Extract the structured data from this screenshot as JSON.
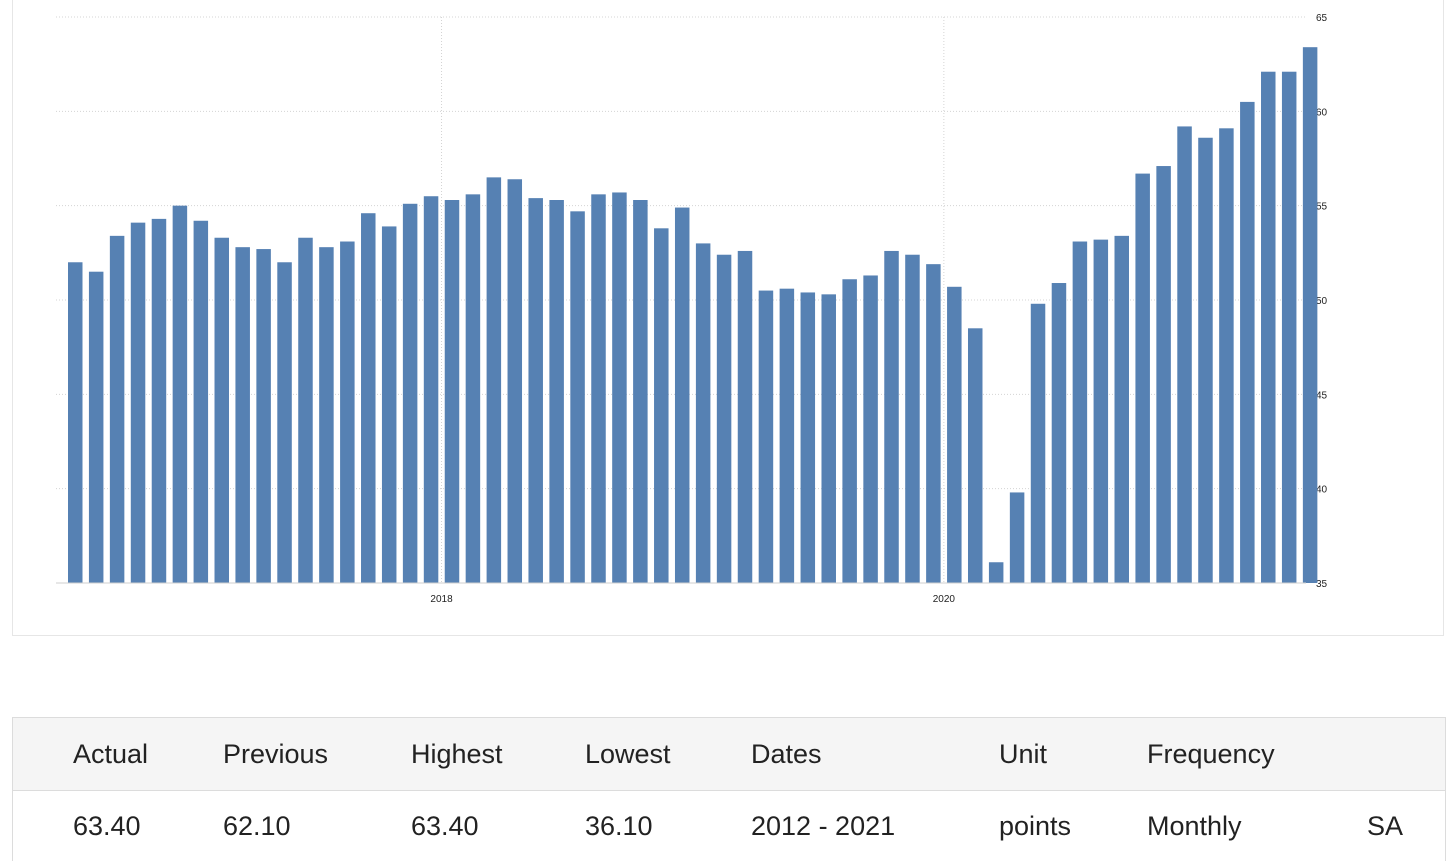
{
  "chart_data": {
    "type": "bar",
    "title": "",
    "xlabel": "",
    "ylabel": "",
    "ylim": [
      35,
      65
    ],
    "y_ticks": [
      35,
      40,
      45,
      50,
      55,
      60,
      65
    ],
    "x_tick_labels": [
      {
        "label": "2018",
        "after_bar_index": 17
      },
      {
        "label": "2020",
        "after_bar_index": 41
      }
    ],
    "grid": true,
    "y_axis_side": "right",
    "bar_color": "#5681b3",
    "values": [
      52.0,
      51.5,
      53.4,
      54.1,
      54.3,
      55.0,
      54.2,
      53.3,
      52.8,
      52.7,
      52.0,
      53.3,
      52.8,
      53.1,
      54.6,
      53.9,
      55.1,
      55.5,
      55.3,
      55.6,
      56.5,
      56.4,
      55.4,
      55.3,
      54.7,
      55.6,
      55.7,
      55.3,
      53.8,
      54.9,
      53.0,
      52.4,
      52.6,
      50.5,
      50.6,
      50.4,
      50.3,
      51.1,
      51.3,
      52.6,
      52.4,
      51.9,
      50.7,
      48.5,
      36.1,
      39.8,
      49.8,
      50.9,
      53.1,
      53.2,
      53.4,
      56.7,
      57.1,
      59.2,
      58.6,
      59.1,
      60.5,
      62.1,
      62.1,
      63.4
    ]
  },
  "stats": {
    "headers": [
      "Actual",
      "Previous",
      "Highest",
      "Lowest",
      "Dates",
      "Unit",
      "Frequency",
      ""
    ],
    "values": [
      "63.40",
      "62.10",
      "63.40",
      "36.10",
      "2012 - 2021",
      "points",
      "Monthly",
      "SA"
    ]
  }
}
